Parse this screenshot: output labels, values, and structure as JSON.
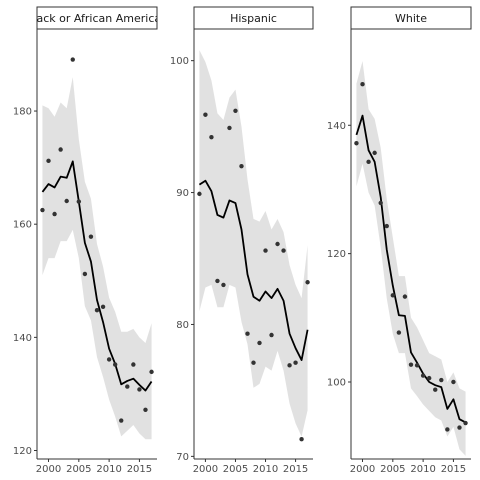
{
  "chart_data": [
    {
      "type": "line",
      "panel_label": "Black or African American",
      "x": [
        1999,
        2000,
        2001,
        2002,
        2003,
        2004,
        2005,
        2006,
        2007,
        2008,
        2009,
        2010,
        2011,
        2012,
        2013,
        2014,
        2015,
        2016,
        2017
      ],
      "series": [
        {
          "type": "scatter",
          "values": [
            162.5,
            171.2,
            161.8,
            173.2,
            164.1,
            189.1,
            164.0,
            151.2,
            157.8,
            144.8,
            145.4,
            136.1,
            135.2,
            125.3,
            131.3,
            135.2,
            130.8,
            127.2,
            133.9
          ]
        },
        {
          "type": "line",
          "values": [
            165.7,
            167.1,
            166.5,
            168.4,
            168.2,
            171.1,
            164.0,
            156.7,
            153.4,
            146.6,
            142.7,
            138.0,
            135.3,
            131.7,
            132.3,
            132.7,
            131.6,
            130.6,
            132.2
          ]
        },
        {
          "type": "ribbon",
          "lower": [
            151.0,
            154.0,
            154.0,
            157.0,
            157.0,
            159.0,
            154.0,
            145.5,
            143.0,
            136.5,
            133.0,
            129.0,
            126.0,
            122.5,
            123.5,
            124.5,
            123.0,
            122.0,
            122.0
          ],
          "upper": [
            181.0,
            180.5,
            179.0,
            181.5,
            180.5,
            186.0,
            175.0,
            167.5,
            164.5,
            156.5,
            152.5,
            147.0,
            144.5,
            141.0,
            141.0,
            141.5,
            140.0,
            139.0,
            142.5
          ]
        }
      ],
      "xticks": [
        "2000",
        "2005",
        "2010",
        "2015"
      ],
      "yticks": [
        "120",
        "140",
        "160",
        "180"
      ],
      "xlim": [
        1998.1,
        2017.9
      ],
      "ylim": [
        118.5,
        194.5
      ]
    },
    {
      "type": "line",
      "panel_label": "Hispanic",
      "x": [
        1999,
        2000,
        2001,
        2002,
        2003,
        2004,
        2005,
        2006,
        2007,
        2008,
        2009,
        2010,
        2011,
        2012,
        2013,
        2014,
        2015,
        2016,
        2017
      ],
      "series": [
        {
          "type": "scatter",
          "values": [
            89.9,
            95.9,
            94.2,
            83.3,
            83.0,
            94.9,
            96.2,
            92.0,
            79.3,
            77.1,
            78.6,
            85.6,
            79.2,
            86.1,
            85.6,
            76.9,
            77.1,
            71.3,
            83.2
          ]
        },
        {
          "type": "line",
          "values": [
            90.6,
            90.9,
            90.1,
            88.3,
            88.1,
            89.4,
            89.2,
            87.2,
            83.8,
            82.1,
            81.8,
            82.5,
            82.0,
            82.7,
            81.8,
            79.3,
            78.2,
            77.3,
            79.6
          ]
        },
        {
          "type": "ribbon",
          "lower": [
            81.0,
            82.8,
            83.0,
            81.3,
            81.3,
            83.0,
            82.8,
            80.2,
            78.5,
            75.2,
            75.5,
            76.8,
            76.5,
            78.0,
            76.5,
            74.0,
            72.5,
            71.5,
            73.5
          ]
        },
        {
          "type": "ribbon",
          "upper": [
            100.8,
            99.9,
            98.5,
            96.0,
            95.5,
            97.2,
            97.8,
            95.0,
            91.0,
            88.0,
            87.8,
            88.6,
            87.2,
            88.0,
            87.0,
            84.5,
            83.0,
            82.0,
            86.0
          ]
        }
      ],
      "xticks": [
        "2000",
        "2005",
        "2010",
        "2015"
      ],
      "yticks": [
        "70",
        "80",
        "90",
        "100"
      ],
      "xlim": [
        1998.1,
        2017.9
      ],
      "ylim": [
        69.8,
        102.4
      ]
    },
    {
      "type": "line",
      "panel_label": "White",
      "x": [
        1999,
        2000,
        2001,
        2002,
        2003,
        2004,
        2005,
        2006,
        2007,
        2008,
        2009,
        2010,
        2011,
        2012,
        2013,
        2014,
        2015,
        2016,
        2017
      ],
      "series": [
        {
          "type": "scatter",
          "values": [
            137.2,
            146.4,
            134.3,
            135.7,
            127.9,
            124.3,
            113.5,
            107.7,
            113.3,
            102.7,
            102.6,
            101.0,
            100.6,
            98.8,
            100.3,
            92.6,
            100.0,
            92.9,
            93.6
          ]
        },
        {
          "type": "line",
          "values": [
            138.5,
            141.5,
            136.1,
            134.3,
            128.8,
            120.6,
            115.0,
            110.4,
            110.3,
            104.6,
            103.0,
            101.3,
            100.0,
            99.5,
            99.2,
            95.8,
            97.3,
            94.2,
            93.7
          ]
        },
        {
          "type": "ribbon",
          "lower": [
            130.5,
            134.0,
            129.5,
            127.5,
            121.0,
            113.0,
            107.5,
            104.5,
            104.5,
            99.0,
            97.8,
            96.5,
            95.5,
            94.5,
            94.0,
            91.5,
            93.0,
            89.5,
            88.5
          ]
        },
        {
          "type": "ribbon",
          "upper": [
            146.5,
            150.0,
            142.5,
            141.0,
            136.5,
            128.5,
            122.5,
            116.5,
            116.5,
            110.0,
            108.5,
            106.5,
            104.5,
            104.0,
            103.5,
            100.0,
            101.5,
            99.0,
            98.5
          ]
        }
      ],
      "xticks": [
        "2000",
        "2005",
        "2010",
        "2015"
      ],
      "yticks": [
        "100",
        "120",
        "140"
      ],
      "xlim": [
        1998.1,
        2017.9
      ],
      "ylim": [
        88.0,
        155.0
      ]
    }
  ]
}
